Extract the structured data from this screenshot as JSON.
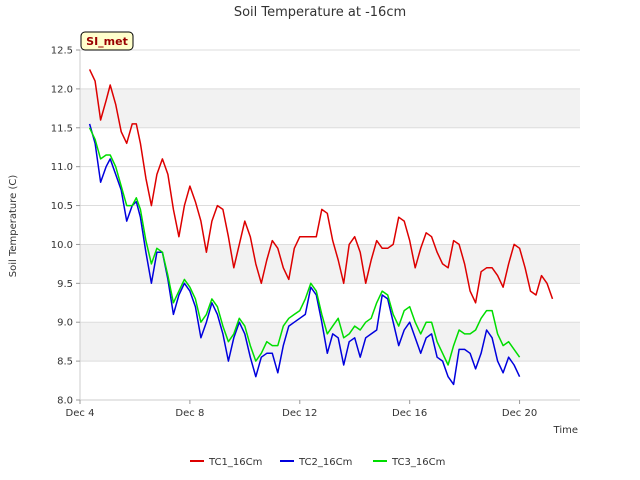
{
  "chart_data": {
    "type": "line",
    "title": "Soil Temperature at -16cm",
    "xlabel": "Time",
    "ylabel": "Soil Temperature (C)",
    "badge": "SI_met",
    "x_unit": "days since Dec 4",
    "xlim": [
      0,
      18.2
    ],
    "ylim": [
      8.0,
      12.5
    ],
    "x_ticks": [
      {
        "value": 0,
        "label": "Dec 4"
      },
      {
        "value": 4,
        "label": "Dec 8"
      },
      {
        "value": 8,
        "label": "Dec 12"
      },
      {
        "value": 12,
        "label": "Dec 16"
      },
      {
        "value": 16,
        "label": "Dec 20"
      }
    ],
    "y_ticks": [
      {
        "value": 8.0,
        "label": "8.0"
      },
      {
        "value": 8.5,
        "label": "8.5"
      },
      {
        "value": 9.0,
        "label": "9.0"
      },
      {
        "value": 9.5,
        "label": "9.5"
      },
      {
        "value": 10.0,
        "label": "10.0"
      },
      {
        "value": 10.5,
        "label": "10.5"
      },
      {
        "value": 11.0,
        "label": "11.0"
      },
      {
        "value": 11.5,
        "label": "11.5"
      },
      {
        "value": 12.0,
        "label": "12.0"
      },
      {
        "value": 12.5,
        "label": "12.5"
      }
    ],
    "bands": [
      [
        8.5,
        9.0
      ],
      [
        9.5,
        10.0
      ],
      [
        11.5,
        12.0
      ]
    ],
    "legend_position": "bottom",
    "series": [
      {
        "name": "TC1_16Cm",
        "color": "#dd0000",
        "x": [
          0.35,
          0.55,
          0.75,
          0.95,
          1.1,
          1.3,
          1.5,
          1.7,
          1.9,
          2.05,
          2.2,
          2.4,
          2.6,
          2.8,
          3.0,
          3.2,
          3.4,
          3.6,
          3.8,
          4.0,
          4.2,
          4.4,
          4.6,
          4.8,
          5.0,
          5.2,
          5.4,
          5.6,
          5.8,
          6.0,
          6.2,
          6.4,
          6.6,
          6.8,
          7.0,
          7.2,
          7.4,
          7.6,
          7.8,
          8.0,
          8.2,
          8.4,
          8.6,
          8.8,
          9.0,
          9.2,
          9.4,
          9.6,
          9.8,
          10.0,
          10.2,
          10.4,
          10.6,
          10.8,
          11.0,
          11.2,
          11.4,
          11.6,
          11.8,
          12.0,
          12.2,
          12.4,
          12.6,
          12.8,
          13.0,
          13.2,
          13.4,
          13.6,
          13.8,
          14.0,
          14.2,
          14.4,
          14.6,
          14.8,
          15.0,
          15.2,
          15.4,
          15.6,
          15.8,
          16.0,
          16.2,
          16.4,
          16.6,
          16.8,
          17.0,
          17.2,
          17.4,
          17.6,
          17.8,
          18.0
        ],
        "values": [
          12.25,
          12.1,
          11.6,
          11.85,
          12.05,
          11.8,
          11.45,
          11.3,
          11.55,
          11.55,
          11.3,
          10.85,
          10.5,
          10.9,
          11.1,
          10.9,
          10.45,
          10.1,
          10.5,
          10.75,
          10.55,
          10.3,
          9.9,
          10.3,
          10.5,
          10.45,
          10.1,
          9.7,
          10.0,
          10.3,
          10.1,
          9.75,
          9.5,
          9.8,
          10.05,
          9.95,
          9.7,
          9.55,
          9.95,
          10.1,
          10.1,
          10.1,
          10.1,
          10.45,
          10.4,
          10.05,
          9.8,
          9.5,
          10.0,
          10.1,
          9.9,
          9.5,
          9.8,
          10.05,
          9.95,
          9.95,
          10.0,
          10.35,
          10.3,
          10.05,
          9.7,
          9.95,
          10.15,
          10.1,
          9.9,
          9.75,
          9.7,
          10.05,
          10.0,
          9.75,
          9.4,
          9.25,
          9.65,
          9.7,
          9.7,
          9.6,
          9.45,
          9.75,
          10.0,
          9.95,
          9.7,
          9.4,
          9.35,
          9.6,
          9.5,
          9.3,
          null,
          null,
          null,
          null
        ]
      },
      {
        "name": "TC2_16Cm",
        "color": "#0000dd",
        "x": [
          0.35,
          0.55,
          0.75,
          0.95,
          1.1,
          1.3,
          1.5,
          1.7,
          1.9,
          2.05,
          2.2,
          2.4,
          2.6,
          2.8,
          3.0,
          3.2,
          3.4,
          3.6,
          3.8,
          4.0,
          4.2,
          4.4,
          4.6,
          4.8,
          5.0,
          5.2,
          5.4,
          5.6,
          5.8,
          6.0,
          6.2,
          6.4,
          6.6,
          6.8,
          7.0,
          7.2,
          7.4,
          7.6,
          7.8,
          8.0,
          8.2,
          8.4,
          8.6,
          8.8,
          9.0,
          9.2,
          9.4,
          9.6,
          9.8,
          10.0,
          10.2,
          10.4,
          10.6,
          10.8,
          11.0,
          11.2,
          11.4,
          11.6,
          11.8,
          12.0,
          12.2,
          12.4,
          12.6,
          12.8,
          13.0,
          13.2,
          13.4,
          13.6,
          13.8,
          14.0,
          14.2,
          14.4,
          14.6,
          14.8,
          15.0,
          15.2,
          15.4,
          15.6,
          15.8,
          16.0,
          16.2,
          16.4,
          16.6,
          16.8,
          17.0,
          17.2,
          17.4,
          17.6,
          17.8,
          18.0
        ],
        "values": [
          11.55,
          11.3,
          10.8,
          11.0,
          11.1,
          10.9,
          10.7,
          10.3,
          10.5,
          10.55,
          10.35,
          9.9,
          9.5,
          9.9,
          9.9,
          9.55,
          9.1,
          9.35,
          9.5,
          9.4,
          9.2,
          8.8,
          9.0,
          9.25,
          9.1,
          8.85,
          8.5,
          8.8,
          9.0,
          8.85,
          8.55,
          8.3,
          8.55,
          8.6,
          8.6,
          8.35,
          8.7,
          8.95,
          9.0,
          9.05,
          9.1,
          9.45,
          9.35,
          9.0,
          8.6,
          8.85,
          8.8,
          8.45,
          8.75,
          8.8,
          8.55,
          8.8,
          8.85,
          8.9,
          9.35,
          9.3,
          9.0,
          8.7,
          8.9,
          9.0,
          8.8,
          8.6,
          8.8,
          8.85,
          8.55,
          8.5,
          8.3,
          8.2,
          8.65,
          8.65,
          8.6,
          8.4,
          8.6,
          8.9,
          8.8,
          8.5,
          8.35,
          8.55,
          8.45,
          8.3,
          null,
          null,
          null,
          null,
          null,
          null,
          null,
          null,
          null,
          null
        ]
      },
      {
        "name": "TC3_16Cm",
        "color": "#00dd00",
        "x": [
          0.35,
          0.55,
          0.75,
          0.95,
          1.1,
          1.3,
          1.5,
          1.7,
          1.9,
          2.05,
          2.2,
          2.4,
          2.6,
          2.8,
          3.0,
          3.2,
          3.4,
          3.6,
          3.8,
          4.0,
          4.2,
          4.4,
          4.6,
          4.8,
          5.0,
          5.2,
          5.4,
          5.6,
          5.8,
          6.0,
          6.2,
          6.4,
          6.6,
          6.8,
          7.0,
          7.2,
          7.4,
          7.6,
          7.8,
          8.0,
          8.2,
          8.4,
          8.6,
          8.8,
          9.0,
          9.2,
          9.4,
          9.6,
          9.8,
          10.0,
          10.2,
          10.4,
          10.6,
          10.8,
          11.0,
          11.2,
          11.4,
          11.6,
          11.8,
          12.0,
          12.2,
          12.4,
          12.6,
          12.8,
          13.0,
          13.2,
          13.4,
          13.6,
          13.8,
          14.0,
          14.2,
          14.4,
          14.6,
          14.8,
          15.0,
          15.2,
          15.4,
          15.6,
          15.8,
          16.0,
          16.2,
          16.4,
          16.6,
          16.8,
          17.0,
          17.2,
          17.4,
          17.6,
          17.8,
          18.0
        ],
        "values": [
          11.5,
          11.35,
          11.1,
          11.15,
          11.15,
          11.0,
          10.75,
          10.5,
          10.5,
          10.6,
          10.45,
          10.05,
          9.75,
          9.95,
          9.9,
          9.6,
          9.25,
          9.4,
          9.55,
          9.45,
          9.3,
          9.0,
          9.1,
          9.3,
          9.2,
          8.95,
          8.75,
          8.85,
          9.05,
          8.95,
          8.7,
          8.5,
          8.6,
          8.75,
          8.7,
          8.7,
          8.95,
          9.05,
          9.1,
          9.15,
          9.3,
          9.5,
          9.4,
          9.1,
          8.85,
          8.95,
          9.05,
          8.8,
          8.85,
          8.95,
          8.9,
          9.0,
          9.05,
          9.25,
          9.4,
          9.35,
          9.1,
          8.95,
          9.15,
          9.2,
          9.0,
          8.85,
          9.0,
          9.0,
          8.75,
          8.6,
          8.45,
          8.7,
          8.9,
          8.85,
          8.85,
          8.9,
          9.05,
          9.15,
          9.15,
          8.85,
          8.7,
          8.75,
          8.65,
          8.55,
          null,
          null,
          null,
          null,
          null,
          null,
          null,
          null,
          null,
          null
        ]
      }
    ]
  }
}
